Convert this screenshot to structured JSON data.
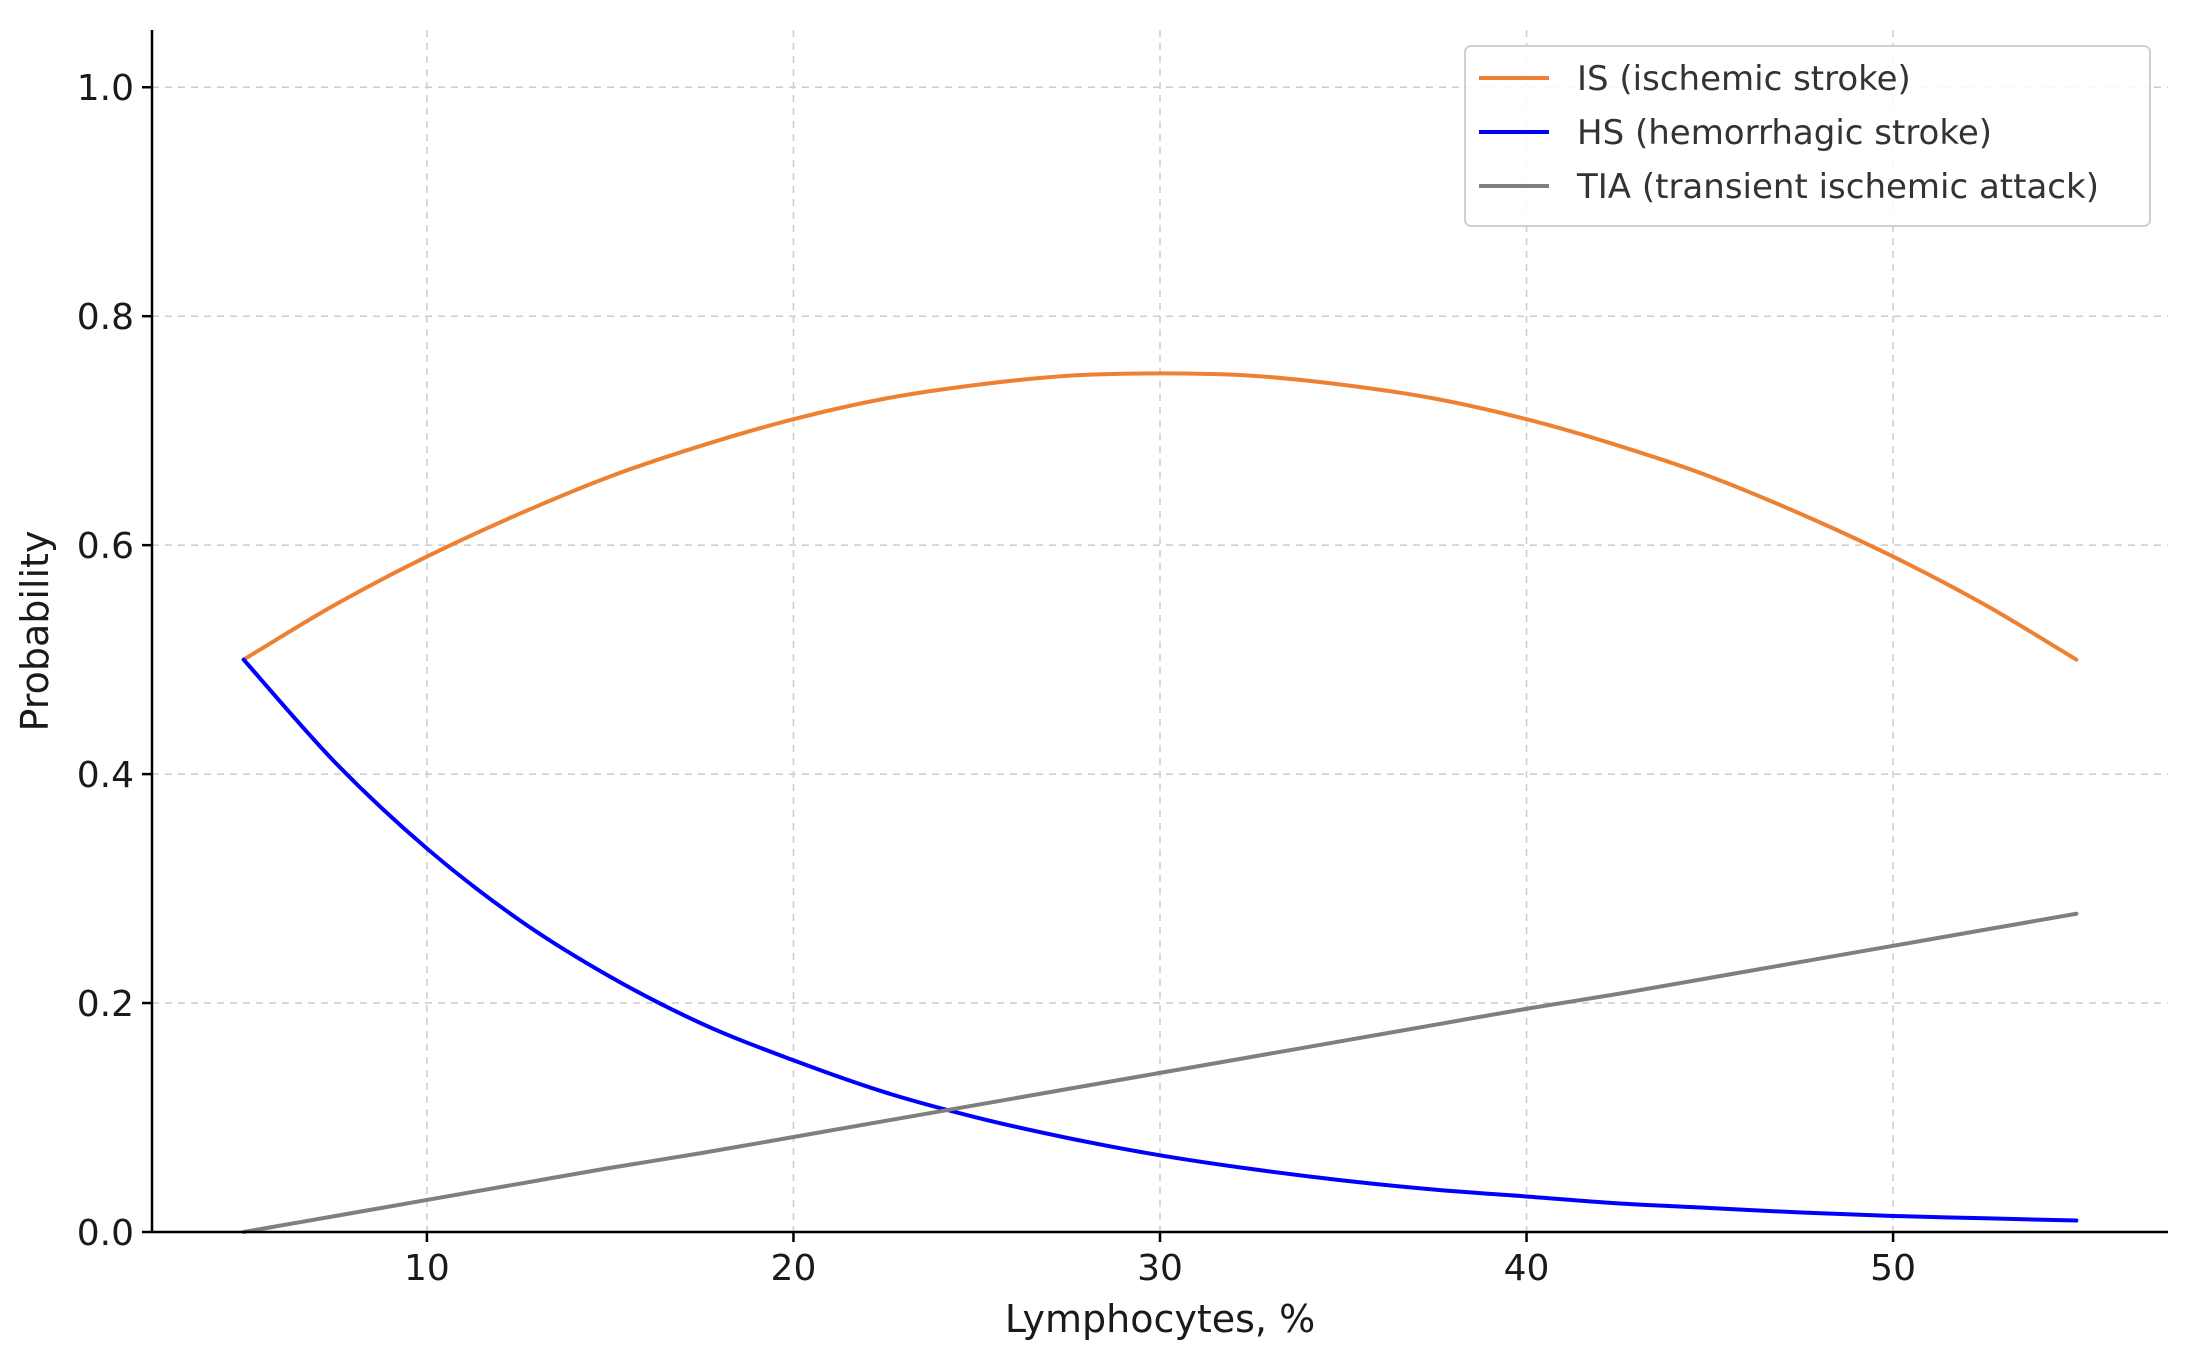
{
  "chart_data": {
    "type": "line",
    "title": "",
    "xlabel": "Lymphocytes, %",
    "ylabel": "Probability",
    "xlim": [
      2.5,
      57.5
    ],
    "ylim": [
      0,
      1.05
    ],
    "xticks": [
      10,
      20,
      30,
      40,
      50
    ],
    "xtick_labels": [
      "10",
      "20",
      "30",
      "40",
      "50"
    ],
    "yticks": [
      0.0,
      0.2,
      0.4,
      0.6,
      0.8,
      1.0
    ],
    "ytick_labels": [
      "0.0",
      "0.2",
      "0.4",
      "0.6",
      "0.8",
      "1.0"
    ],
    "grid": true,
    "legend_position": "top-right",
    "x": [
      5,
      7.5,
      10,
      12.5,
      15,
      17.5,
      20,
      22.5,
      25,
      27.5,
      30,
      32.5,
      35,
      37.5,
      40,
      42.5,
      45,
      47.5,
      50,
      52.5,
      55
    ],
    "series": [
      {
        "name": "IS (ischemic stroke)",
        "color": "#ED8131",
        "values": [
          0.5,
          0.548,
          0.59,
          0.627,
          0.66,
          0.687,
          0.71,
          0.728,
          0.74,
          0.748,
          0.75,
          0.748,
          0.74,
          0.728,
          0.71,
          0.687,
          0.66,
          0.627,
          0.59,
          0.548,
          0.5
        ]
      },
      {
        "name": "HS (hemorrhagic stroke)",
        "color": "#0000FF",
        "values": [
          0.5,
          0.41,
          0.335,
          0.273,
          0.223,
          0.182,
          0.15,
          0.122,
          0.1,
          0.082,
          0.067,
          0.055,
          0.045,
          0.037,
          0.031,
          0.025,
          0.021,
          0.017,
          0.014,
          0.012,
          0.01
        ]
      },
      {
        "name": "TIA (transient ischemic attack)",
        "color": "#7F7F7F",
        "values": [
          0.0,
          0.014,
          0.028,
          0.042,
          0.056,
          0.069,
          0.083,
          0.097,
          0.111,
          0.125,
          0.139,
          0.153,
          0.167,
          0.181,
          0.195,
          0.208,
          0.222,
          0.236,
          0.25,
          0.264,
          0.278
        ]
      }
    ]
  }
}
